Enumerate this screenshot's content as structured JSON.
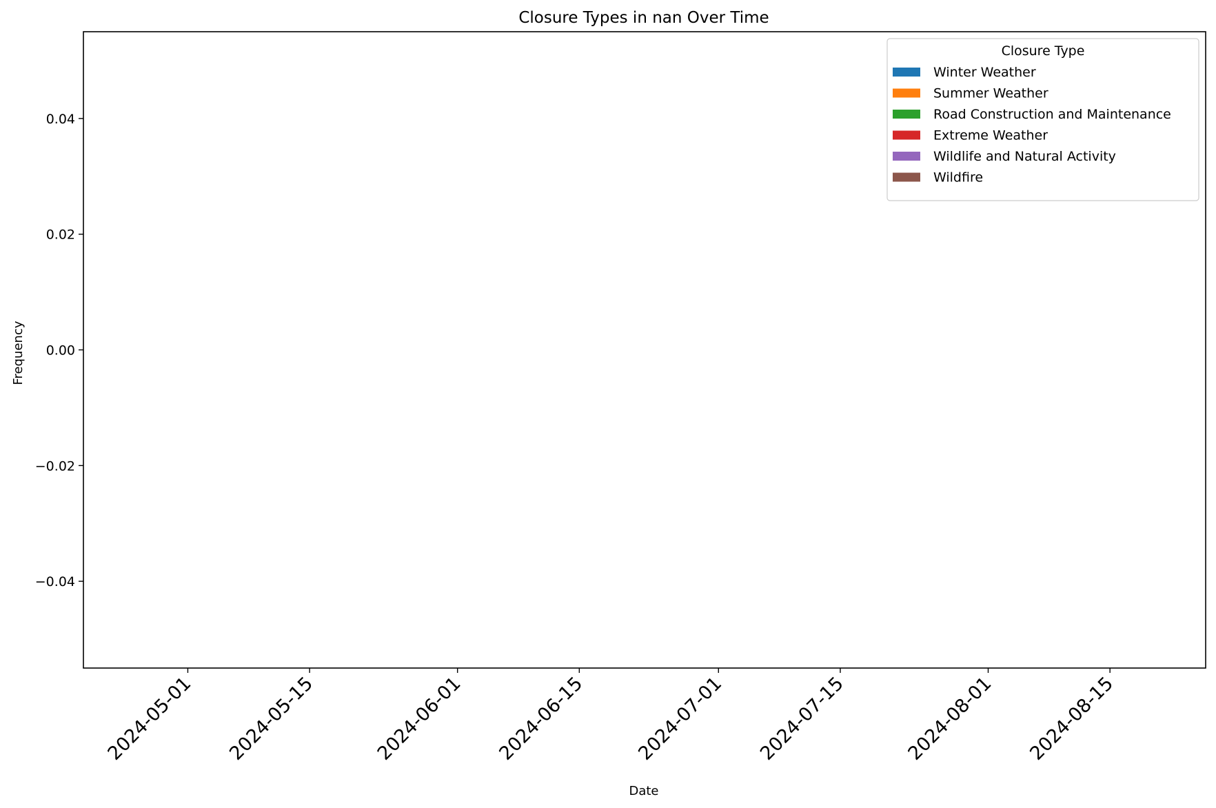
{
  "chart_data": {
    "type": "area",
    "title": "Closure Types in nan Over Time",
    "xlabel": "Date",
    "ylabel": "Frequency",
    "x_ticks": [
      "2024-05-01",
      "2024-05-15",
      "2024-06-01",
      "2024-06-15",
      "2024-07-01",
      "2024-07-15",
      "2024-08-01",
      "2024-08-15"
    ],
    "xlim": [
      "2024-04-19",
      "2024-08-26"
    ],
    "y_ticks": [
      0.04,
      0.02,
      0.0,
      -0.02,
      -0.04
    ],
    "y_tick_labels": [
      "0.04",
      "0.02",
      "0.00",
      "−0.02",
      "−0.04"
    ],
    "ylim": [
      -0.055,
      0.055
    ],
    "grid": false,
    "legend": {
      "title": "Closure Type",
      "placement": "top-right"
    },
    "series": [
      {
        "name": "Winter Weather",
        "color": "#1f77b4",
        "values": []
      },
      {
        "name": "Summer Weather",
        "color": "#ff7f0e",
        "values": []
      },
      {
        "name": "Road Construction and Maintenance",
        "color": "#2ca02c",
        "values": []
      },
      {
        "name": "Extreme Weather",
        "color": "#d62728",
        "values": []
      },
      {
        "name": "Wildlife and Natural Activity",
        "color": "#9467bd",
        "values": []
      },
      {
        "name": "Wildfire",
        "color": "#8c564b",
        "values": []
      }
    ]
  }
}
